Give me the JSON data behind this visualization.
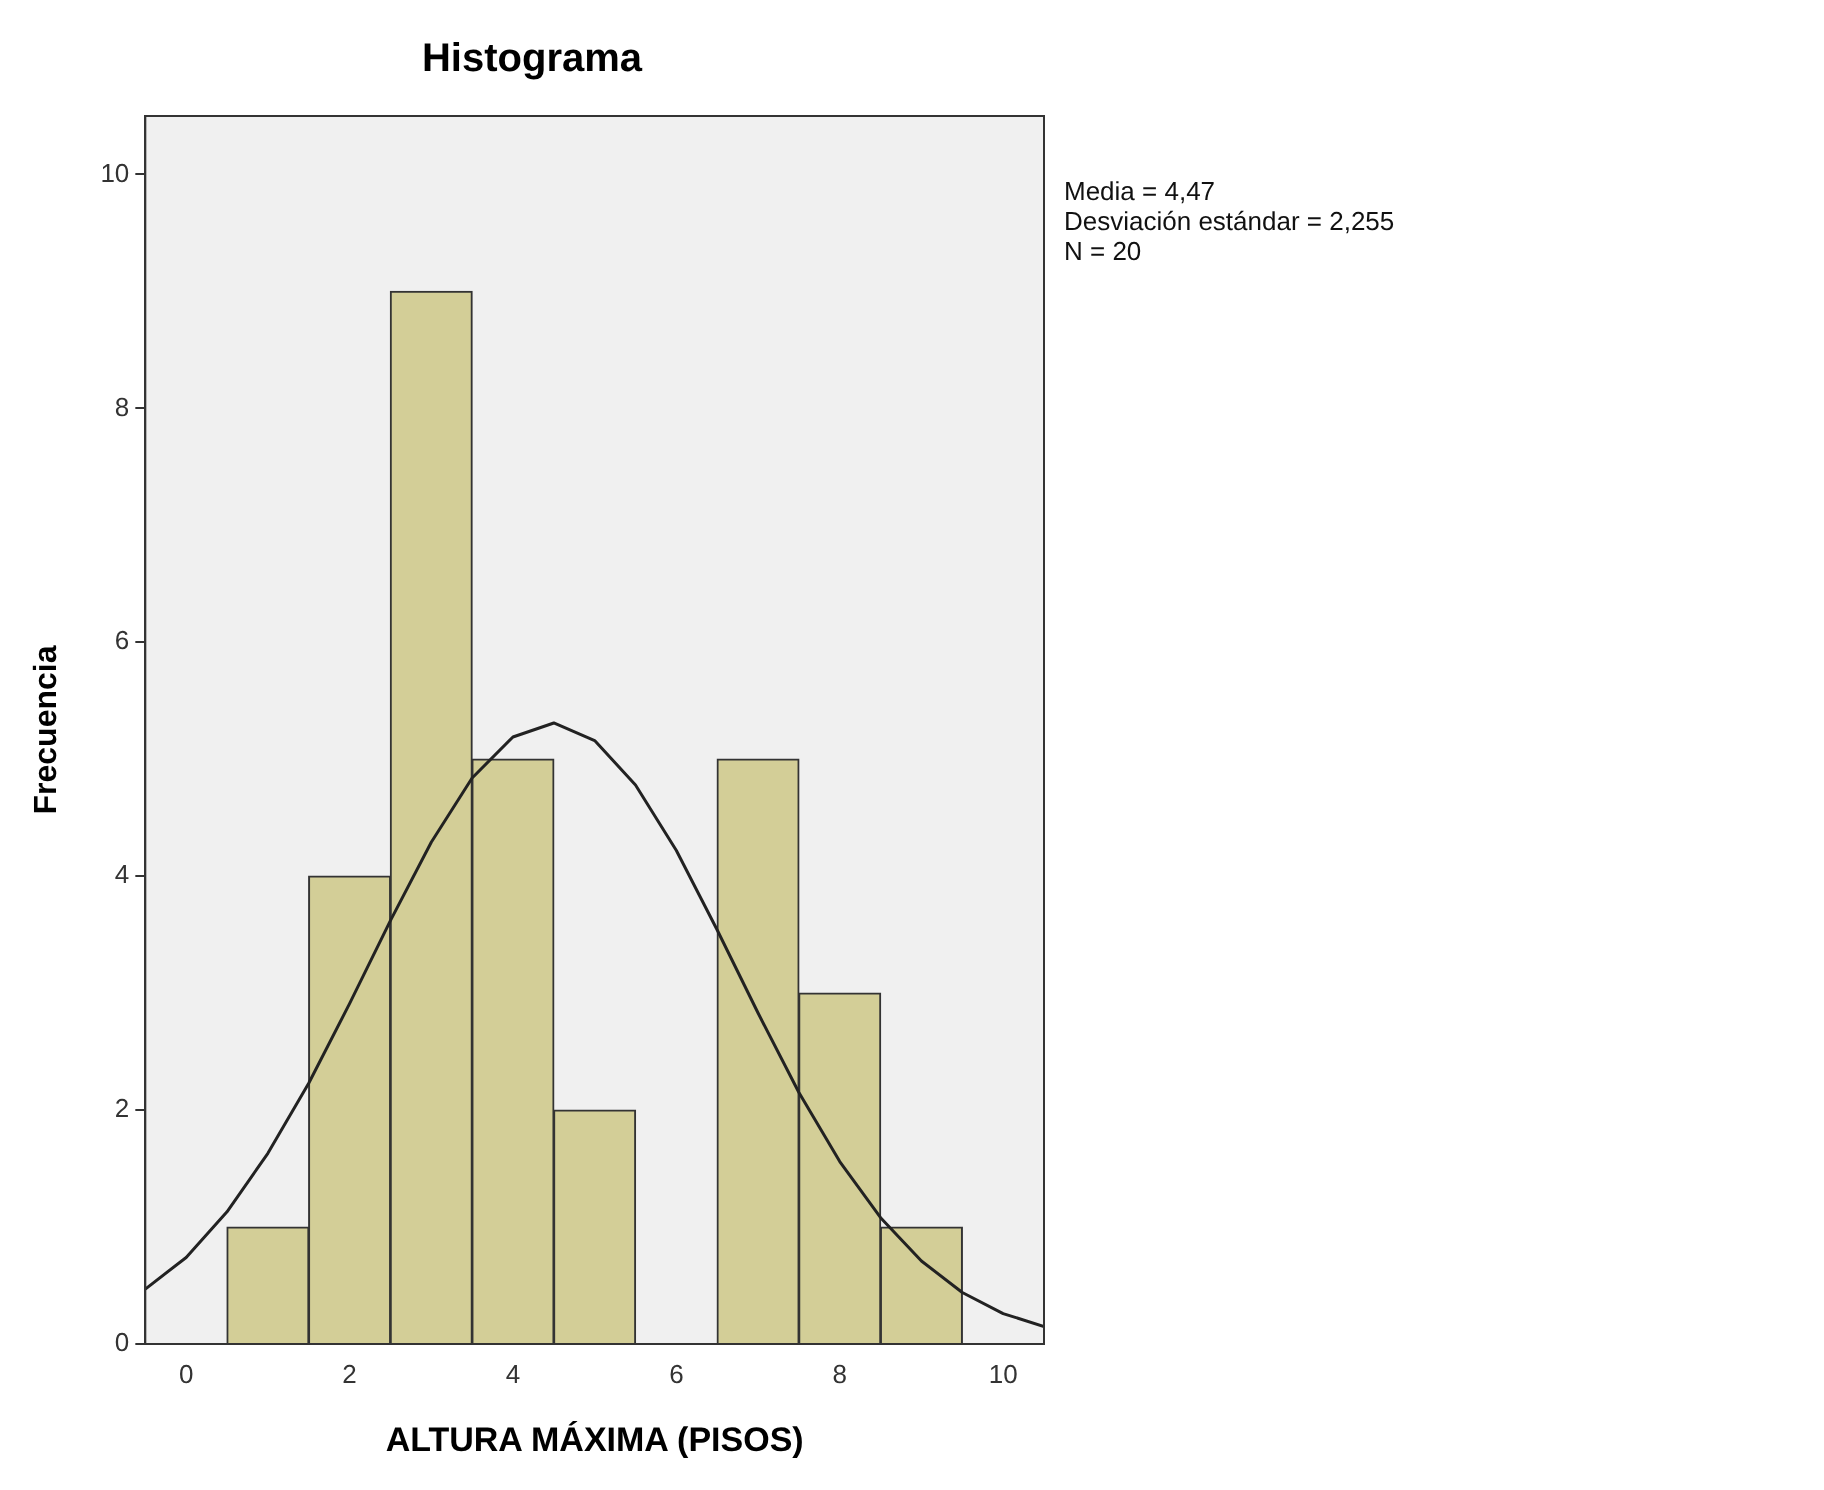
{
  "chart_data": {
    "type": "histogram",
    "title": "Histograma",
    "xlabel": "ALTURA MÁXIMA (PISOS)",
    "ylabel": "Frecuencia",
    "bins": [
      0.5,
      1.5,
      2.5,
      3.5,
      4.5,
      5.5,
      6.5,
      7.5,
      8.5,
      9.5
    ],
    "values": [
      1,
      4,
      9,
      5,
      2,
      0,
      5,
      3,
      1
    ],
    "color": "#d3ce97",
    "series": [
      {
        "type": "line",
        "color": "#222222",
        "x": [
          -0.5,
          0,
          0.5,
          1,
          1.5,
          2,
          2.5,
          3,
          3.5,
          4,
          4.5,
          5,
          5.5,
          6,
          6.5,
          7,
          7.5,
          8,
          8.5,
          9,
          9.5,
          10,
          10.5
        ],
        "values": [
          0.47,
          0.74,
          1.13,
          1.63,
          2.23,
          2.91,
          3.62,
          4.29,
          4.84,
          5.19,
          5.31,
          5.16,
          4.78,
          4.22,
          3.54,
          2.83,
          2.15,
          1.56,
          1.08,
          0.71,
          0.44,
          0.26,
          0.15
        ]
      }
    ],
    "xlim": [
      -0.5,
      10.5
    ],
    "xticks": [
      0,
      2,
      4,
      6,
      8,
      10
    ],
    "ylim": [
      0,
      10.5
    ],
    "yticks": [
      0,
      2,
      4,
      6,
      8,
      10
    ],
    "grid": false,
    "legend": false,
    "annotations": [
      "Media = 4,47",
      "Desviación estándar = 2,255",
      "N = 20"
    ]
  }
}
